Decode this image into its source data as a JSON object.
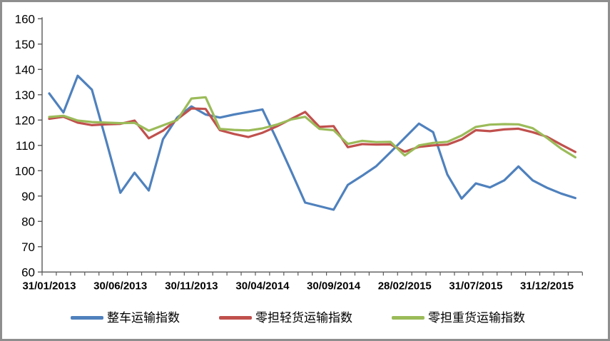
{
  "chart_data": {
    "type": "line",
    "title": "",
    "xlabel": "",
    "ylabel": "",
    "ylim": [
      60,
      160
    ],
    "ytick_step": 10,
    "grid": false,
    "legend_position": "bottom",
    "x": [
      "31/01/2013",
      "28/02/2013",
      "31/03/2013",
      "30/04/2013",
      "31/05/2013",
      "30/06/2013",
      "31/07/2013",
      "31/08/2013",
      "30/09/2013",
      "31/10/2013",
      "30/11/2013",
      "31/12/2013",
      "31/01/2014",
      "28/02/2014",
      "31/03/2014",
      "30/04/2014",
      "31/05/2014",
      "30/06/2014",
      "31/07/2014",
      "31/08/2014",
      "30/09/2014",
      "31/10/2014",
      "30/11/2014",
      "31/12/2014",
      "31/01/2015",
      "28/02/2015",
      "31/03/2015",
      "30/04/2015",
      "31/05/2015",
      "30/06/2015",
      "31/07/2015",
      "31/08/2015",
      "30/09/2015",
      "31/10/2015",
      "30/11/2015",
      "31/12/2015",
      "31/01/2016",
      "29/02/2016"
    ],
    "x_ticks": [
      {
        "index": 0,
        "label": "31/01/2013"
      },
      {
        "index": 5,
        "label": "30/06/2013"
      },
      {
        "index": 10,
        "label": "30/11/2013"
      },
      {
        "index": 15,
        "label": "30/04/2014"
      },
      {
        "index": 20,
        "label": "30/09/2014"
      },
      {
        "index": 25,
        "label": "28/02/2015"
      },
      {
        "index": 30,
        "label": "31/07/2015"
      },
      {
        "index": 35,
        "label": "31/12/2015"
      }
    ],
    "series": [
      {
        "name": "整车运输指数",
        "color": "#4F81BD",
        "values": [
          130.5,
          123,
          137.5,
          132,
          112,
          91.3,
          99.2,
          92.2,
          112.4,
          121,
          125.4,
          122.2,
          121,
          122.2,
          123.2,
          124.2,
          112.3,
          100,
          87.4,
          86,
          84.6,
          94.4,
          98,
          101.8,
          107.3,
          113,
          118.6,
          115.2,
          98.5,
          89,
          95,
          93.4,
          96.2,
          101.7,
          96.2,
          93.3,
          91,
          89.2
        ]
      },
      {
        "name": "零担轻货运输指数",
        "color": "#C0504D",
        "values": [
          120.5,
          121.3,
          119,
          118,
          118.3,
          118.5,
          119.8,
          112.8,
          115.8,
          120.3,
          124.6,
          124.4,
          116,
          114.5,
          113.3,
          115,
          117.5,
          120.4,
          123.2,
          117.3,
          117.6,
          109.3,
          110.5,
          110.3,
          110.4,
          107.5,
          109.4,
          110,
          110.3,
          112.4,
          116,
          115.6,
          116.3,
          116.6,
          115.2,
          113.4,
          110.3,
          107.4
        ]
      },
      {
        "name": "零担重货运输指数",
        "color": "#9BBB59",
        "values": [
          121.2,
          121.7,
          119.8,
          119.2,
          119,
          118.8,
          118.9,
          115.8,
          117.9,
          120,
          128.5,
          129,
          116.5,
          116.1,
          115.9,
          116.7,
          118.2,
          120.2,
          121.3,
          116.5,
          116,
          110.6,
          111.8,
          111.3,
          111.4,
          106,
          110,
          111,
          111.4,
          113.9,
          117.3,
          118.2,
          118.4,
          118.3,
          116.8,
          113,
          108.7,
          105.3
        ]
      }
    ],
    "axis_color": "#595959"
  }
}
